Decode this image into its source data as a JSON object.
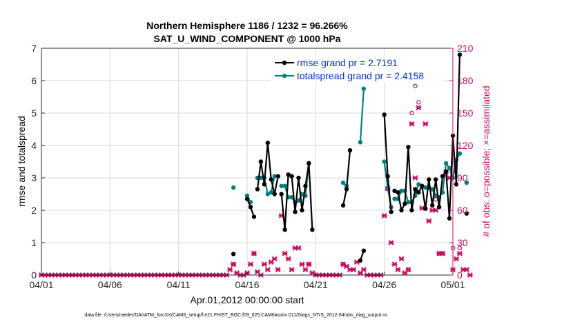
{
  "chart_data": {
    "type": "line",
    "title_line1": "Northern Hemisphere 1186 / 1232 = 96.266%",
    "title_line2": "SAT_U_WIND_COMPONENT @ 1000 hPa",
    "xlabel": "Apr.01,2012 00:00:00 start",
    "ylabel_left": "rmse and totalspread",
    "ylabel_right": "# of obs: o=possible; ×=assimilated",
    "footer": "data file: /Users/raeder/DAI/ATM_forcXX/CAM6_setup/f.e21.FHIST_BGC.f09_025.CAM6assim.011/Diags_NTrS_2012-04/obs_diag_output.nc",
    "xlim": [
      0,
      30
    ],
    "ylim_left": [
      0,
      7
    ],
    "ylim_right": [
      0,
      210
    ],
    "x_ticks": [
      0,
      5,
      10,
      15,
      20,
      25,
      30
    ],
    "x_tick_labels": [
      "04/01",
      "04/06",
      "04/11",
      "04/16",
      "04/21",
      "04/26",
      "05/01"
    ],
    "y_ticks_left": [
      0,
      1,
      2,
      3,
      4,
      5,
      6,
      7
    ],
    "y_tick_labels_left": [
      "0",
      "1",
      "2",
      "3",
      "4",
      "5",
      "6",
      "7"
    ],
    "y_ticks_right": [
      0,
      30,
      60,
      90,
      120,
      150,
      180,
      210
    ],
    "y_tick_labels_right": [
      "0",
      "30",
      "60",
      "90",
      "120",
      "150",
      "180",
      "210"
    ],
    "colors": {
      "rmse": "#000000",
      "spread": "#00807f",
      "obs": "#cc0a5e",
      "legend_text": "#0033cc"
    },
    "legend": {
      "rmse_label": "rmse grand pr = 2.7191",
      "spread_label": "totalspread grand pr = 2.4158"
    },
    "rmse_segments": [
      [
        [
          14.0,
          0.65
        ]
      ],
      [
        [
          15.0,
          2.35
        ],
        [
          15.25,
          2.1
        ],
        [
          15.5,
          1.8
        ]
      ],
      [
        [
          15.75,
          2.65
        ],
        [
          16.0,
          3.5
        ],
        [
          16.25,
          2.8
        ],
        [
          16.5,
          4.08
        ],
        [
          16.75,
          2.95
        ],
        [
          17.0,
          2.5
        ],
        [
          17.25,
          3.05
        ]
      ],
      [
        [
          17.5,
          2.5
        ],
        [
          17.75,
          1.4
        ],
        [
          18.0,
          3.1
        ],
        [
          18.25,
          3.05
        ],
        [
          18.5,
          1.95
        ],
        [
          18.75,
          3.0
        ],
        [
          19.0,
          2.0
        ],
        [
          19.25,
          2.75
        ],
        [
          19.5,
          3.45
        ],
        [
          19.75,
          1.4
        ]
      ],
      [
        [
          22.0,
          2.15
        ],
        [
          22.25,
          2.65
        ],
        [
          22.5,
          3.85
        ]
      ],
      [
        [
          23.25,
          0.45
        ],
        [
          23.5,
          0.75
        ]
      ],
      [
        [
          25.0,
          4.95
        ],
        [
          25.25,
          3.05
        ],
        [
          25.5,
          1.95
        ]
      ],
      [
        [
          25.75,
          2.6
        ],
        [
          26.0,
          2.55
        ],
        [
          26.25,
          2.0
        ],
        [
          26.5,
          2.2
        ],
        [
          26.75,
          3.95
        ],
        [
          27.0,
          2.0
        ],
        [
          27.25,
          2.65
        ],
        [
          27.5,
          2.55
        ],
        [
          27.75,
          2.75
        ],
        [
          28.0,
          2.05
        ],
        [
          28.25,
          2.95
        ],
        [
          28.5,
          2.15
        ],
        [
          28.75,
          2.95
        ],
        [
          29.0,
          2.1
        ],
        [
          29.25,
          3.05
        ],
        [
          29.5,
          3.2
        ],
        [
          29.75,
          1.75
        ],
        [
          30.0,
          4.3
        ],
        [
          30.25,
          2.8
        ],
        [
          30.5,
          6.8
        ]
      ],
      [
        [
          31.0,
          1.9
        ]
      ]
    ],
    "spread_segments": [
      [
        [
          14.0,
          2.7
        ]
      ],
      [
        [
          15.0,
          2.45
        ],
        [
          15.25,
          2.25
        ]
      ],
      [
        [
          15.75,
          3.0
        ],
        [
          16.0,
          3.0
        ],
        [
          16.25,
          3.0
        ],
        [
          16.5,
          2.5
        ],
        [
          16.75,
          2.55
        ],
        [
          17.0,
          3.05
        ]
      ],
      [
        [
          17.5,
          2.75
        ],
        [
          17.75,
          2.75
        ],
        [
          18.0,
          2.4
        ],
        [
          18.25,
          2.4
        ],
        [
          18.5,
          2.25
        ],
        [
          18.75,
          2.3
        ],
        [
          19.0,
          2.5
        ],
        [
          19.25,
          2.45
        ],
        [
          19.5,
          3.45
        ]
      ],
      [
        [
          22.0,
          2.85
        ],
        [
          22.25,
          2.75
        ]
      ],
      [
        [
          23.25,
          4.1
        ],
        [
          23.5,
          5.75
        ]
      ],
      [
        [
          25.0,
          3.5
        ],
        [
          25.25,
          2.7
        ],
        [
          25.5,
          2.1
        ]
      ],
      [
        [
          25.75,
          2.35
        ],
        [
          26.0,
          2.35
        ],
        [
          26.25,
          2.6
        ],
        [
          26.5,
          2.6
        ],
        [
          26.75,
          2.25
        ],
        [
          27.0,
          2.25
        ],
        [
          27.25,
          2.45
        ],
        [
          27.5,
          2.8
        ],
        [
          27.75,
          2.75
        ],
        [
          28.0,
          2.7
        ],
        [
          28.25,
          2.7
        ],
        [
          28.5,
          2.65
        ],
        [
          28.75,
          2.45
        ],
        [
          29.0,
          2.4
        ],
        [
          29.25,
          2.55
        ],
        [
          29.5,
          3.45
        ],
        [
          29.75,
          3.3
        ],
        [
          30.0,
          3.0
        ],
        [
          30.25,
          3.55
        ],
        [
          30.5,
          3.75
        ]
      ],
      [
        [
          31.0,
          2.85
        ]
      ]
    ],
    "obs_assimilated": [
      [
        0,
        0
      ],
      [
        0.25,
        0
      ],
      [
        0.5,
        0
      ],
      [
        0.75,
        0
      ],
      [
        1,
        0
      ],
      [
        1.25,
        0
      ],
      [
        1.5,
        0
      ],
      [
        1.75,
        0
      ],
      [
        2,
        0
      ],
      [
        2.25,
        0
      ],
      [
        2.5,
        0
      ],
      [
        2.75,
        0
      ],
      [
        3,
        0
      ],
      [
        3.25,
        0
      ],
      [
        3.5,
        0
      ],
      [
        3.75,
        0
      ],
      [
        4,
        0
      ],
      [
        4.25,
        0
      ],
      [
        4.5,
        0
      ],
      [
        4.75,
        0
      ],
      [
        5,
        0
      ],
      [
        5.25,
        0
      ],
      [
        5.5,
        0
      ],
      [
        5.75,
        0
      ],
      [
        6,
        0
      ],
      [
        6.25,
        0
      ],
      [
        6.5,
        0
      ],
      [
        6.75,
        0
      ],
      [
        7,
        0
      ],
      [
        7.25,
        0
      ],
      [
        7.5,
        0
      ],
      [
        7.75,
        0
      ],
      [
        8,
        0
      ],
      [
        8.25,
        0
      ],
      [
        8.5,
        0
      ],
      [
        8.75,
        0
      ],
      [
        9,
        0
      ],
      [
        9.25,
        0
      ],
      [
        9.5,
        0
      ],
      [
        9.75,
        0
      ],
      [
        10,
        0
      ],
      [
        10.25,
        0
      ],
      [
        10.5,
        0
      ],
      [
        10.75,
        0
      ],
      [
        11,
        0
      ],
      [
        11.25,
        0
      ],
      [
        11.5,
        0
      ],
      [
        11.75,
        0
      ],
      [
        12,
        0
      ],
      [
        12.25,
        0
      ],
      [
        12.5,
        0
      ],
      [
        12.75,
        0
      ],
      [
        13,
        0
      ],
      [
        13.25,
        0
      ],
      [
        13.5,
        0
      ],
      [
        13.75,
        5
      ],
      [
        14,
        10
      ],
      [
        14.25,
        2
      ],
      [
        14.5,
        0
      ],
      [
        14.75,
        0
      ],
      [
        15,
        2
      ],
      [
        15.25,
        10
      ],
      [
        15.5,
        20
      ],
      [
        15.75,
        3
      ],
      [
        16,
        0
      ],
      [
        16.25,
        10
      ],
      [
        16.5,
        5
      ],
      [
        16.75,
        12
      ],
      [
        17,
        15
      ],
      [
        17.25,
        5
      ],
      [
        17.5,
        55
      ],
      [
        17.75,
        20
      ],
      [
        18,
        15
      ],
      [
        18.25,
        5
      ],
      [
        18.5,
        25
      ],
      [
        18.75,
        25
      ],
      [
        19,
        10
      ],
      [
        19.25,
        5
      ],
      [
        19.5,
        10
      ],
      [
        19.75,
        2
      ],
      [
        20,
        0
      ],
      [
        20.25,
        0
      ],
      [
        20.5,
        0
      ],
      [
        20.75,
        0
      ],
      [
        21,
        0
      ],
      [
        21.25,
        0
      ],
      [
        21.5,
        0
      ],
      [
        21.75,
        0
      ],
      [
        22,
        10
      ],
      [
        22.25,
        8
      ],
      [
        22.5,
        5
      ],
      [
        22.75,
        5
      ],
      [
        23,
        12
      ],
      [
        23.25,
        2
      ],
      [
        23.5,
        5
      ],
      [
        23.75,
        0
      ],
      [
        24,
        0
      ],
      [
        24.25,
        0
      ],
      [
        24.5,
        0
      ],
      [
        24.75,
        0
      ],
      [
        25,
        55
      ],
      [
        25.25,
        80
      ],
      [
        25.5,
        30
      ],
      [
        25.75,
        10
      ],
      [
        26,
        5
      ],
      [
        26.25,
        15
      ],
      [
        26.5,
        2
      ],
      [
        26.75,
        5
      ],
      [
        27,
        140
      ],
      [
        27.25,
        90
      ],
      [
        27.5,
        155
      ],
      [
        27.75,
        62
      ],
      [
        28,
        140
      ],
      [
        28.25,
        50
      ],
      [
        28.5,
        60
      ],
      [
        28.75,
        60
      ],
      [
        29,
        20
      ],
      [
        29.25,
        20
      ],
      [
        29.5,
        95
      ],
      [
        29.75,
        90
      ],
      [
        30,
        5
      ],
      [
        30.25,
        15
      ],
      [
        30.5,
        20
      ],
      [
        30.75,
        5
      ],
      [
        31,
        5
      ],
      [
        31.25,
        0
      ]
    ],
    "obs_possible": [
      [
        14,
        10
      ],
      [
        15.5,
        20
      ],
      [
        19.5,
        10
      ],
      [
        22,
        10
      ],
      [
        25.25,
        80
      ],
      [
        26.75,
        5
      ],
      [
        27,
        150
      ],
      [
        27.25,
        175
      ],
      [
        27.5,
        160
      ],
      [
        28.75,
        70
      ],
      [
        29,
        20
      ],
      [
        29.25,
        20
      ],
      [
        30,
        25
      ],
      [
        30.5,
        25
      ]
    ]
  }
}
